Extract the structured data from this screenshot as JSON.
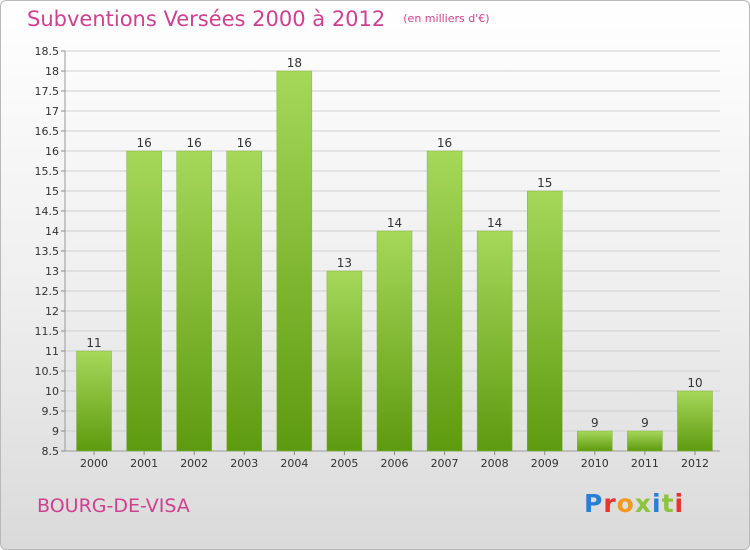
{
  "title": "Subventions Versées 2000 à 2012",
  "subtitle": "(en milliers d'€)",
  "place_name": "BOURG-DE-VISA",
  "logo": {
    "text": "Proxiti",
    "colors": [
      "#2a7fd4",
      "#e8342c",
      "#f29a1f",
      "#8cc43c",
      "#2a7fd4",
      "#8cc43c",
      "#e8342c"
    ]
  },
  "colors": {
    "accent": "#d04090",
    "bar_light": "#a6d85a",
    "bar_dark": "#5e9a0f",
    "grid": "#cfcfcf"
  },
  "chart_data": {
    "type": "bar",
    "categories": [
      "2000",
      "2001",
      "2002",
      "2003",
      "2004",
      "2005",
      "2006",
      "2007",
      "2008",
      "2009",
      "2010",
      "2011",
      "2012"
    ],
    "values": [
      11,
      16,
      16,
      16,
      18,
      13,
      14,
      16,
      14,
      15,
      9,
      9,
      10
    ],
    "value_labels": [
      "11",
      "16",
      "16",
      "16",
      "18",
      "13",
      "14",
      "16",
      "14",
      "15",
      "9",
      "9",
      "10"
    ],
    "ylim": [
      8.5,
      18.5
    ],
    "yticks": [
      "8.5",
      "9",
      "9.5",
      "10",
      "10.5",
      "11",
      "11.5",
      "12",
      "12.5",
      "13",
      "13.5",
      "14",
      "14.5",
      "15",
      "15.5",
      "16",
      "16.5",
      "17",
      "17.5",
      "18",
      "18.5"
    ],
    "grid": true,
    "legend": "none"
  }
}
